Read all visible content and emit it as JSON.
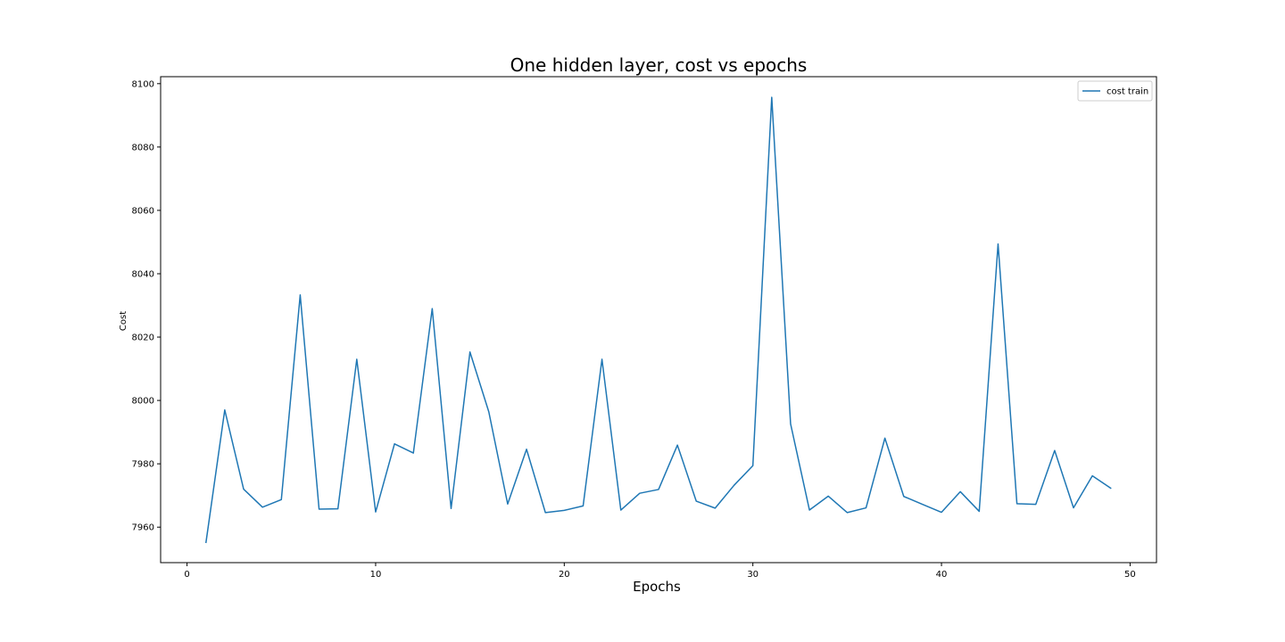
{
  "chart_data": {
    "type": "line",
    "title": "One hidden layer, cost vs epochs",
    "xlabel": "Epochs",
    "ylabel": "Cost",
    "xlim": [
      -1.4,
      51.4
    ],
    "ylim": [
      7948.8,
      8102.2
    ],
    "xticks": [
      0,
      10,
      20,
      30,
      40,
      50
    ],
    "yticks": [
      7960,
      7980,
      8000,
      8020,
      8040,
      8060,
      8080,
      8100
    ],
    "grid": false,
    "legend_position": "top-right",
    "series": [
      {
        "name": "cost train",
        "color": "#1f77b4",
        "x": [
          1,
          2,
          3,
          4,
          5,
          6,
          7,
          8,
          9,
          10,
          11,
          12,
          13,
          14,
          15,
          16,
          17,
          18,
          19,
          20,
          21,
          22,
          23,
          24,
          25,
          26,
          27,
          28,
          29,
          30,
          31,
          32,
          33,
          34,
          35,
          36,
          37,
          38,
          39,
          40,
          41,
          42,
          43,
          44,
          45,
          46,
          47,
          48,
          49
        ],
        "y": [
          7955,
          7997,
          7972,
          7966.3,
          7968.7,
          8033.3,
          7965.7,
          7965.8,
          8013,
          7964.8,
          7986.3,
          7983.4,
          8029,
          7965.9,
          8015.3,
          7996.4,
          7967.3,
          7984.6,
          7964.6,
          7965.3,
          7966.7,
          8013,
          7965.4,
          7970.7,
          7971.9,
          7985.9,
          7968.2,
          7966,
          7973.2,
          7979.4,
          8095.7,
          7992.6,
          7965.4,
          7969.8,
          7964.6,
          7966.1,
          7988.1,
          7969.7,
          7967.2,
          7964.7,
          7971.2,
          7965,
          8049.4,
          7967.4,
          7967.2,
          7984.2,
          7966.1,
          7976.2,
          7972.2
        ]
      }
    ]
  }
}
